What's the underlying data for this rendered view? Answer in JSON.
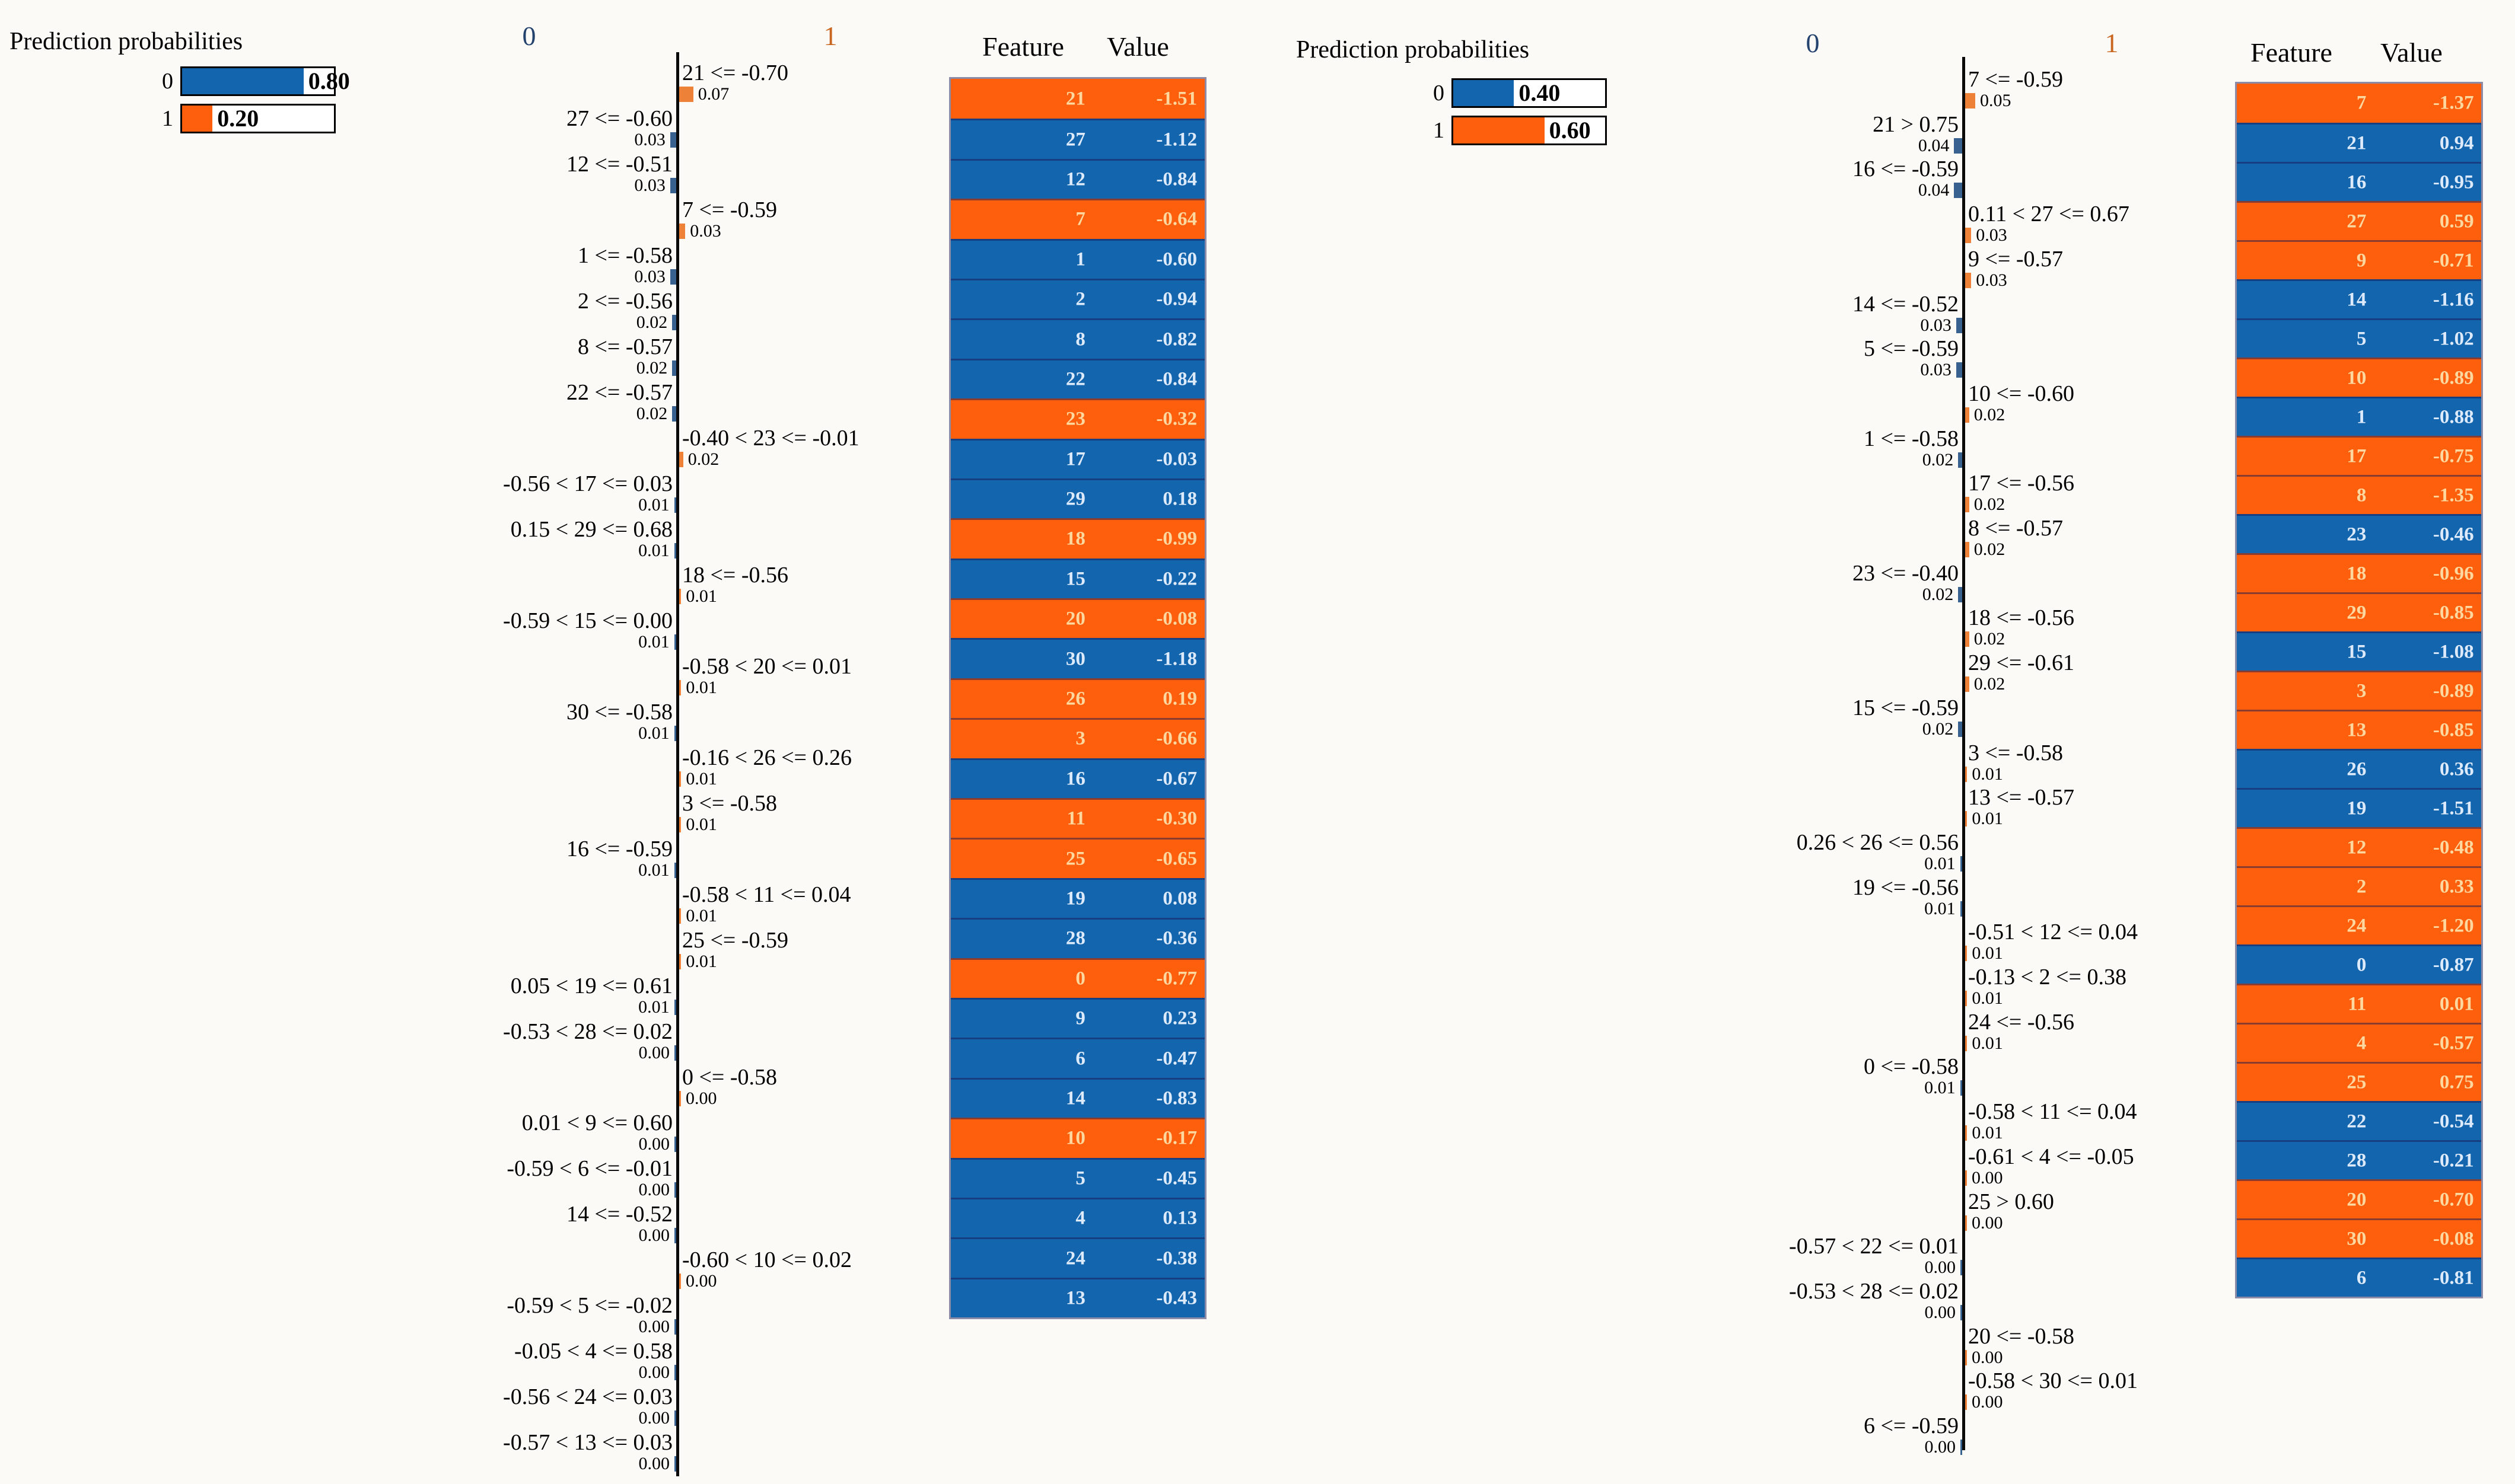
{
  "colors": {
    "class0": "#1365ae",
    "class1": "#fd5f0d",
    "class0_bar": "#39618f",
    "class1_bar": "#ee8138",
    "class0_header": "#24426e",
    "class1_header": "#c8651f",
    "class0_text": "#ddeafb",
    "class1_text": "#ffd8a0",
    "axis": "#0a0a0a"
  },
  "chart_data": [
    {
      "type": "bar",
      "subtype": "lime_explanation",
      "prediction_probabilities": {
        "title": "Prediction probabilities",
        "classes": [
          {
            "label": "0",
            "probability": 0.8,
            "display": "0.80",
            "class_id": "0"
          },
          {
            "label": "1",
            "probability": 0.2,
            "display": "0.20",
            "class_id": "1"
          }
        ]
      },
      "explanation": {
        "left_header": "0",
        "right_header": "1",
        "rows": [
          {
            "condition": "21 <= -0.70",
            "weight": 0.07,
            "display": "0.07",
            "class_id": "1"
          },
          {
            "condition": "27 <= -0.60",
            "weight": 0.03,
            "display": "0.03",
            "class_id": "0"
          },
          {
            "condition": "12 <= -0.51",
            "weight": 0.03,
            "display": "0.03",
            "class_id": "0"
          },
          {
            "condition": "7 <= -0.59",
            "weight": 0.03,
            "display": "0.03",
            "class_id": "1"
          },
          {
            "condition": "1 <= -0.58",
            "weight": 0.03,
            "display": "0.03",
            "class_id": "0"
          },
          {
            "condition": "2 <= -0.56",
            "weight": 0.02,
            "display": "0.02",
            "class_id": "0"
          },
          {
            "condition": "8 <= -0.57",
            "weight": 0.02,
            "display": "0.02",
            "class_id": "0"
          },
          {
            "condition": "22 <= -0.57",
            "weight": 0.02,
            "display": "0.02",
            "class_id": "0"
          },
          {
            "condition": "-0.40 < 23 <= -0.01",
            "weight": 0.02,
            "display": "0.02",
            "class_id": "1"
          },
          {
            "condition": "-0.56 < 17 <= 0.03",
            "weight": 0.01,
            "display": "0.01",
            "class_id": "0"
          },
          {
            "condition": "0.15 < 29 <= 0.68",
            "weight": 0.01,
            "display": "0.01",
            "class_id": "0"
          },
          {
            "condition": "18 <= -0.56",
            "weight": 0.01,
            "display": "0.01",
            "class_id": "1"
          },
          {
            "condition": "-0.59 < 15 <= 0.00",
            "weight": 0.01,
            "display": "0.01",
            "class_id": "0"
          },
          {
            "condition": "-0.58 < 20 <= 0.01",
            "weight": 0.01,
            "display": "0.01",
            "class_id": "1"
          },
          {
            "condition": "30 <= -0.58",
            "weight": 0.01,
            "display": "0.01",
            "class_id": "0"
          },
          {
            "condition": "-0.16 < 26 <= 0.26",
            "weight": 0.01,
            "display": "0.01",
            "class_id": "1"
          },
          {
            "condition": "3 <= -0.58",
            "weight": 0.01,
            "display": "0.01",
            "class_id": "1"
          },
          {
            "condition": "16 <= -0.59",
            "weight": 0.01,
            "display": "0.01",
            "class_id": "0"
          },
          {
            "condition": "-0.58 < 11 <= 0.04",
            "weight": 0.01,
            "display": "0.01",
            "class_id": "1"
          },
          {
            "condition": "25 <= -0.59",
            "weight": 0.01,
            "display": "0.01",
            "class_id": "1"
          },
          {
            "condition": "0.05 < 19 <= 0.61",
            "weight": 0.01,
            "display": "0.01",
            "class_id": "0"
          },
          {
            "condition": "-0.53 < 28 <= 0.02",
            "weight": 0.004,
            "display": "0.00",
            "class_id": "0"
          },
          {
            "condition": "0 <= -0.58",
            "weight": 0.004,
            "display": "0.00",
            "class_id": "1"
          },
          {
            "condition": "0.01 < 9 <= 0.60",
            "weight": 0.004,
            "display": "0.00",
            "class_id": "0"
          },
          {
            "condition": "-0.59 < 6 <= -0.01",
            "weight": 0.004,
            "display": "0.00",
            "class_id": "0"
          },
          {
            "condition": "14 <= -0.52",
            "weight": 0.004,
            "display": "0.00",
            "class_id": "0"
          },
          {
            "condition": "-0.60 < 10 <= 0.02",
            "weight": 0.004,
            "display": "0.00",
            "class_id": "1"
          },
          {
            "condition": "-0.59 < 5 <= -0.02",
            "weight": 0.004,
            "display": "0.00",
            "class_id": "0"
          },
          {
            "condition": "-0.05 < 4 <= 0.58",
            "weight": 0.004,
            "display": "0.00",
            "class_id": "0"
          },
          {
            "condition": "-0.56 < 24 <= 0.03",
            "weight": 0.004,
            "display": "0.00",
            "class_id": "0"
          },
          {
            "condition": "-0.57 < 13 <= 0.03",
            "weight": 0.004,
            "display": "0.00",
            "class_id": "0"
          }
        ]
      },
      "feature_table": {
        "feature_header": "Feature",
        "value_header": "Value",
        "rows": [
          {
            "feature": "21",
            "value": "-1.51",
            "class_id": "1"
          },
          {
            "feature": "27",
            "value": "-1.12",
            "class_id": "0"
          },
          {
            "feature": "12",
            "value": "-0.84",
            "class_id": "0"
          },
          {
            "feature": "7",
            "value": "-0.64",
            "class_id": "1"
          },
          {
            "feature": "1",
            "value": "-0.60",
            "class_id": "0"
          },
          {
            "feature": "2",
            "value": "-0.94",
            "class_id": "0"
          },
          {
            "feature": "8",
            "value": "-0.82",
            "class_id": "0"
          },
          {
            "feature": "22",
            "value": "-0.84",
            "class_id": "0"
          },
          {
            "feature": "23",
            "value": "-0.32",
            "class_id": "1"
          },
          {
            "feature": "17",
            "value": "-0.03",
            "class_id": "0"
          },
          {
            "feature": "29",
            "value": "0.18",
            "class_id": "0"
          },
          {
            "feature": "18",
            "value": "-0.99",
            "class_id": "1"
          },
          {
            "feature": "15",
            "value": "-0.22",
            "class_id": "0"
          },
          {
            "feature": "20",
            "value": "-0.08",
            "class_id": "1"
          },
          {
            "feature": "30",
            "value": "-1.18",
            "class_id": "0"
          },
          {
            "feature": "26",
            "value": "0.19",
            "class_id": "1"
          },
          {
            "feature": "3",
            "value": "-0.66",
            "class_id": "1"
          },
          {
            "feature": "16",
            "value": "-0.67",
            "class_id": "0"
          },
          {
            "feature": "11",
            "value": "-0.30",
            "class_id": "1"
          },
          {
            "feature": "25",
            "value": "-0.65",
            "class_id": "1"
          },
          {
            "feature": "19",
            "value": "0.08",
            "class_id": "0"
          },
          {
            "feature": "28",
            "value": "-0.36",
            "class_id": "0"
          },
          {
            "feature": "0",
            "value": "-0.77",
            "class_id": "1"
          },
          {
            "feature": "9",
            "value": "0.23",
            "class_id": "0"
          },
          {
            "feature": "6",
            "value": "-0.47",
            "class_id": "0"
          },
          {
            "feature": "14",
            "value": "-0.83",
            "class_id": "0"
          },
          {
            "feature": "10",
            "value": "-0.17",
            "class_id": "1"
          },
          {
            "feature": "5",
            "value": "-0.45",
            "class_id": "0"
          },
          {
            "feature": "4",
            "value": "0.13",
            "class_id": "0"
          },
          {
            "feature": "24",
            "value": "-0.38",
            "class_id": "0"
          },
          {
            "feature": "13",
            "value": "-0.43",
            "class_id": "0"
          }
        ]
      }
    },
    {
      "type": "bar",
      "subtype": "lime_explanation",
      "prediction_probabilities": {
        "title": "Prediction probabilities",
        "classes": [
          {
            "label": "0",
            "probability": 0.4,
            "display": "0.40",
            "class_id": "0"
          },
          {
            "label": "1",
            "probability": 0.6,
            "display": "0.60",
            "class_id": "1"
          }
        ]
      },
      "explanation": {
        "left_header": "0",
        "right_header": "1",
        "rows": [
          {
            "condition": "7 <= -0.59",
            "weight": 0.05,
            "display": "0.05",
            "class_id": "1"
          },
          {
            "condition": "21 > 0.75",
            "weight": 0.04,
            "display": "0.04",
            "class_id": "0"
          },
          {
            "condition": "16 <= -0.59",
            "weight": 0.04,
            "display": "0.04",
            "class_id": "0"
          },
          {
            "condition": "0.11 < 27 <= 0.67",
            "weight": 0.03,
            "display": "0.03",
            "class_id": "1"
          },
          {
            "condition": "9 <= -0.57",
            "weight": 0.03,
            "display": "0.03",
            "class_id": "1"
          },
          {
            "condition": "14 <= -0.52",
            "weight": 0.03,
            "display": "0.03",
            "class_id": "0"
          },
          {
            "condition": "5 <= -0.59",
            "weight": 0.03,
            "display": "0.03",
            "class_id": "0"
          },
          {
            "condition": "10 <= -0.60",
            "weight": 0.02,
            "display": "0.02",
            "class_id": "1"
          },
          {
            "condition": "1 <= -0.58",
            "weight": 0.02,
            "display": "0.02",
            "class_id": "0"
          },
          {
            "condition": "17 <= -0.56",
            "weight": 0.02,
            "display": "0.02",
            "class_id": "1"
          },
          {
            "condition": "8 <= -0.57",
            "weight": 0.02,
            "display": "0.02",
            "class_id": "1"
          },
          {
            "condition": "23 <= -0.40",
            "weight": 0.02,
            "display": "0.02",
            "class_id": "0"
          },
          {
            "condition": "18 <= -0.56",
            "weight": 0.02,
            "display": "0.02",
            "class_id": "1"
          },
          {
            "condition": "29 <= -0.61",
            "weight": 0.02,
            "display": "0.02",
            "class_id": "1"
          },
          {
            "condition": "15 <= -0.59",
            "weight": 0.02,
            "display": "0.02",
            "class_id": "0"
          },
          {
            "condition": "3 <= -0.58",
            "weight": 0.01,
            "display": "0.01",
            "class_id": "1"
          },
          {
            "condition": "13 <= -0.57",
            "weight": 0.01,
            "display": "0.01",
            "class_id": "1"
          },
          {
            "condition": "0.26 < 26 <= 0.56",
            "weight": 0.01,
            "display": "0.01",
            "class_id": "0"
          },
          {
            "condition": "19 <= -0.56",
            "weight": 0.01,
            "display": "0.01",
            "class_id": "0"
          },
          {
            "condition": "-0.51 < 12 <= 0.04",
            "weight": 0.01,
            "display": "0.01",
            "class_id": "1"
          },
          {
            "condition": "-0.13 < 2 <= 0.38",
            "weight": 0.01,
            "display": "0.01",
            "class_id": "1"
          },
          {
            "condition": "24 <= -0.56",
            "weight": 0.01,
            "display": "0.01",
            "class_id": "1"
          },
          {
            "condition": "0 <= -0.58",
            "weight": 0.01,
            "display": "0.01",
            "class_id": "0"
          },
          {
            "condition": "-0.58 < 11 <= 0.04",
            "weight": 0.01,
            "display": "0.01",
            "class_id": "1"
          },
          {
            "condition": "-0.61 < 4 <= -0.05",
            "weight": 0.004,
            "display": "0.00",
            "class_id": "1"
          },
          {
            "condition": "25 > 0.60",
            "weight": 0.004,
            "display": "0.00",
            "class_id": "1"
          },
          {
            "condition": "-0.57 < 22 <= 0.01",
            "weight": 0.004,
            "display": "0.00",
            "class_id": "0"
          },
          {
            "condition": "-0.53 < 28 <= 0.02",
            "weight": 0.004,
            "display": "0.00",
            "class_id": "0"
          },
          {
            "condition": "20 <= -0.58",
            "weight": 0.004,
            "display": "0.00",
            "class_id": "1"
          },
          {
            "condition": "-0.58 < 30 <= 0.01",
            "weight": 0.004,
            "display": "0.00",
            "class_id": "1"
          },
          {
            "condition": "6 <= -0.59",
            "weight": 0.004,
            "display": "0.00",
            "class_id": "0"
          }
        ]
      },
      "feature_table": {
        "feature_header": "Feature",
        "value_header": "Value",
        "rows": [
          {
            "feature": "7",
            "value": "-1.37",
            "class_id": "1"
          },
          {
            "feature": "21",
            "value": "0.94",
            "class_id": "0"
          },
          {
            "feature": "16",
            "value": "-0.95",
            "class_id": "0"
          },
          {
            "feature": "27",
            "value": "0.59",
            "class_id": "1"
          },
          {
            "feature": "9",
            "value": "-0.71",
            "class_id": "1"
          },
          {
            "feature": "14",
            "value": "-1.16",
            "class_id": "0"
          },
          {
            "feature": "5",
            "value": "-1.02",
            "class_id": "0"
          },
          {
            "feature": "10",
            "value": "-0.89",
            "class_id": "1"
          },
          {
            "feature": "1",
            "value": "-0.88",
            "class_id": "0"
          },
          {
            "feature": "17",
            "value": "-0.75",
            "class_id": "1"
          },
          {
            "feature": "8",
            "value": "-1.35",
            "class_id": "1"
          },
          {
            "feature": "23",
            "value": "-0.46",
            "class_id": "0"
          },
          {
            "feature": "18",
            "value": "-0.96",
            "class_id": "1"
          },
          {
            "feature": "29",
            "value": "-0.85",
            "class_id": "1"
          },
          {
            "feature": "15",
            "value": "-1.08",
            "class_id": "0"
          },
          {
            "feature": "3",
            "value": "-0.89",
            "class_id": "1"
          },
          {
            "feature": "13",
            "value": "-0.85",
            "class_id": "1"
          },
          {
            "feature": "26",
            "value": "0.36",
            "class_id": "0"
          },
          {
            "feature": "19",
            "value": "-1.51",
            "class_id": "0"
          },
          {
            "feature": "12",
            "value": "-0.48",
            "class_id": "1"
          },
          {
            "feature": "2",
            "value": "0.33",
            "class_id": "1"
          },
          {
            "feature": "24",
            "value": "-1.20",
            "class_id": "1"
          },
          {
            "feature": "0",
            "value": "-0.87",
            "class_id": "0"
          },
          {
            "feature": "11",
            "value": "0.01",
            "class_id": "1"
          },
          {
            "feature": "4",
            "value": "-0.57",
            "class_id": "1"
          },
          {
            "feature": "25",
            "value": "0.75",
            "class_id": "1"
          },
          {
            "feature": "22",
            "value": "-0.54",
            "class_id": "0"
          },
          {
            "feature": "28",
            "value": "-0.21",
            "class_id": "0"
          },
          {
            "feature": "20",
            "value": "-0.70",
            "class_id": "1"
          },
          {
            "feature": "30",
            "value": "-0.08",
            "class_id": "1"
          },
          {
            "feature": "6",
            "value": "-0.81",
            "class_id": "0"
          }
        ]
      }
    }
  ]
}
